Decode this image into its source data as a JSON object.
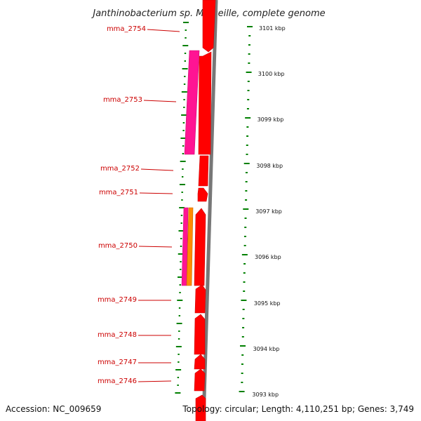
{
  "title": "Janthinobacterium sp. Marseille, complete genome",
  "footer": {
    "accession": "Accession: NC_009659",
    "topology": "Topology: circular; Length: 4,110,251 bp; Genes: 3,749"
  },
  "colors": {
    "gene_red": "#ff0000",
    "gene_magenta": "#ff1493",
    "gene_orange": "#ff8c00",
    "tick_green": "#008000",
    "backbone_grey": "#777777",
    "label_red": "#cc0000"
  },
  "kbp_ticks": [
    {
      "label": "3101 kbp"
    },
    {
      "label": "3100 kbp"
    },
    {
      "label": "3099 kbp"
    },
    {
      "label": "3098 kbp"
    },
    {
      "label": "3097 kbp"
    },
    {
      "label": "3096 kbp"
    },
    {
      "label": "3095 kbp"
    },
    {
      "label": "3094 kbp"
    },
    {
      "label": "3093 kbp"
    }
  ],
  "gene_labels": [
    {
      "name": "mma_2754"
    },
    {
      "name": "mma_2753"
    },
    {
      "name": "mma_2752"
    },
    {
      "name": "mma_2751"
    },
    {
      "name": "mma_2750"
    },
    {
      "name": "mma_2749"
    },
    {
      "name": "mma_2748"
    },
    {
      "name": "mma_2747"
    },
    {
      "name": "mma_2746"
    }
  ]
}
